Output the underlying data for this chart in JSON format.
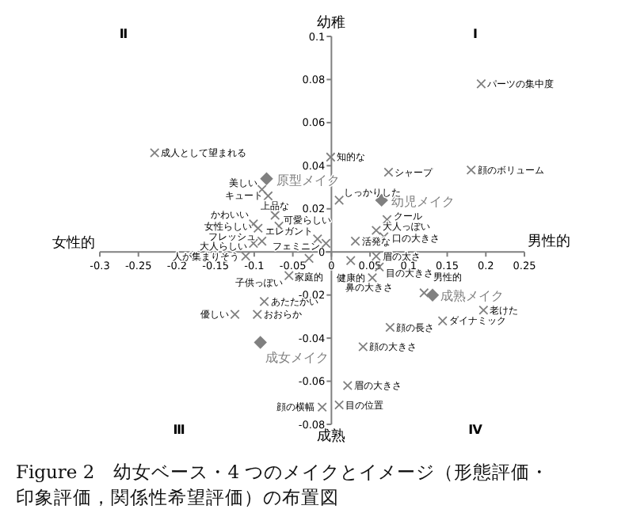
{
  "chart_data": {
    "type": "scatter",
    "title": "Figure 2　幼女ベース・4 つのメイクとイメージ（形態評価・印象評価，関係性希望評価）の布置図",
    "xlabel": "男性的",
    "ylabel": "幼稚",
    "xlim": [
      -0.3,
      0.25
    ],
    "ylim": [
      -0.08,
      0.1
    ],
    "xticks": [
      -0.3,
      -0.25,
      -0.2,
      -0.15,
      -0.1,
      -0.05,
      0,
      0.05,
      0.1,
      0.15,
      0.2,
      0.25
    ],
    "yticks": [
      -0.08,
      -0.06,
      -0.04,
      -0.02,
      0,
      0.02,
      0.04,
      0.06,
      0.08,
      0.1
    ],
    "grid": false,
    "legend": false,
    "series": [
      {
        "color": "#808080",
        "marker": "cross",
        "x": [
          -0.229,
          -0.09,
          -0.082,
          -0.073,
          -0.001,
          0.194,
          0.181,
          0.074,
          0.01,
          0.072,
          -0.101,
          -0.068,
          -0.095,
          -0.09,
          -0.101,
          -0.111,
          -0.018,
          -0.007,
          -0.029,
          -0.055,
          -0.087,
          -0.125,
          -0.096,
          -0.012,
          0.031,
          0.058,
          0.068,
          0.058,
          0.025,
          0.053,
          0.062,
          0.12,
          0.197,
          0.144,
          0.076,
          0.041,
          0.021,
          0.01
        ],
        "values": [
          0.046,
          0.029,
          0.026,
          0.017,
          0.044,
          0.078,
          0.038,
          0.037,
          0.024,
          0.015,
          0.013,
          0.012,
          0.011,
          0.005,
          0.004,
          -0.002,
          0.006,
          0.004,
          -0.003,
          -0.011,
          -0.023,
          -0.029,
          -0.029,
          -0.072,
          0.005,
          0.01,
          0.007,
          -0.002,
          -0.004,
          -0.012,
          -0.007,
          -0.019,
          -0.027,
          -0.032,
          -0.035,
          -0.044,
          -0.062,
          -0.071
        ]
      },
      {
        "name": "原型メイク",
        "color": "#808080",
        "marker": "diamond",
        "x": [
          -0.084
        ],
        "values": [
          0.034
        ]
      },
      {
        "name": "幼児メイク",
        "color": "#808080",
        "marker": "diamond",
        "x": [
          0.065
        ],
        "values": [
          0.024
        ]
      },
      {
        "name": "成熟メイク",
        "color": "#808080",
        "marker": "diamond",
        "x": [
          0.131
        ],
        "values": [
          -0.02
        ]
      },
      {
        "name": "成女メイク",
        "color": "#808080",
        "marker": "diamond",
        "x": [
          -0.092
        ],
        "values": [
          -0.042
        ]
      }
    ],
    "annotations": [
      {
        "text": "成人として望まれる",
        "x": -0.229,
        "y": 0.046
      },
      {
        "text": "美しい",
        "x": -0.09,
        "y": 0.029
      },
      {
        "text": "キュート",
        "x": -0.082,
        "y": 0.026
      },
      {
        "text": "上品な",
        "x": -0.073,
        "y": 0.017
      },
      {
        "text": "知的な",
        "x": -0.001,
        "y": 0.044
      },
      {
        "text": "パーツの集中度",
        "x": 0.194,
        "y": 0.078
      },
      {
        "text": "顔のボリューム",
        "x": 0.181,
        "y": 0.038
      },
      {
        "text": "シャープ",
        "x": 0.074,
        "y": 0.037
      },
      {
        "text": "しっかりした",
        "x": 0.01,
        "y": 0.024
      },
      {
        "text": "クール",
        "x": 0.072,
        "y": 0.015
      },
      {
        "text": "かわいい",
        "x": -0.101,
        "y": 0.013
      },
      {
        "text": "可愛らしい",
        "x": -0.068,
        "y": 0.012
      },
      {
        "text": "女性らしい",
        "x": -0.095,
        "y": 0.011
      },
      {
        "text": "フレッシュ",
        "x": -0.09,
        "y": 0.005
      },
      {
        "text": "大人らしい",
        "x": -0.101,
        "y": 0.004
      },
      {
        "text": "人が集まりそう",
        "x": -0.111,
        "y": -0.002
      },
      {
        "text": "エレガント",
        "x": -0.018,
        "y": 0.006
      },
      {
        "text": "フェミニン",
        "x": -0.007,
        "y": 0.004
      },
      {
        "text": "家庭的",
        "x": -0.029,
        "y": -0.003
      },
      {
        "text": "子供っぽい",
        "x": -0.055,
        "y": -0.011
      },
      {
        "text": "あたたかい",
        "x": -0.087,
        "y": -0.023
      },
      {
        "text": "優しい",
        "x": -0.125,
        "y": -0.029
      },
      {
        "text": "おおらか",
        "x": -0.096,
        "y": -0.029
      },
      {
        "text": "顔の横幅",
        "x": -0.012,
        "y": -0.072
      },
      {
        "text": "活発な",
        "x": 0.031,
        "y": 0.005
      },
      {
        "text": "大人っぽい",
        "x": 0.058,
        "y": 0.01
      },
      {
        "text": "口の大きさ",
        "x": 0.068,
        "y": 0.007
      },
      {
        "text": "眉の太さ",
        "x": 0.058,
        "y": -0.002
      },
      {
        "text": "健康的",
        "x": 0.025,
        "y": -0.004
      },
      {
        "text": "鼻の大きさ",
        "x": 0.053,
        "y": -0.012
      },
      {
        "text": "目の大きさ",
        "x": 0.062,
        "y": -0.007
      },
      {
        "text": "男性的",
        "x": 0.12,
        "y": -0.019
      },
      {
        "text": "老けた",
        "x": 0.197,
        "y": -0.027
      },
      {
        "text": "ダイナミック",
        "x": 0.144,
        "y": -0.032
      },
      {
        "text": "顔の長さ",
        "x": 0.076,
        "y": -0.035
      },
      {
        "text": "顔の大きさ",
        "x": 0.041,
        "y": -0.044
      },
      {
        "text": "眉の大きさ",
        "x": 0.021,
        "y": -0.062
      },
      {
        "text": "目の位置",
        "x": 0.01,
        "y": -0.071
      },
      "Ⅰ",
      "Ⅱ",
      "Ⅲ",
      "Ⅳ",
      "女性的",
      "成熟"
    ]
  }
}
